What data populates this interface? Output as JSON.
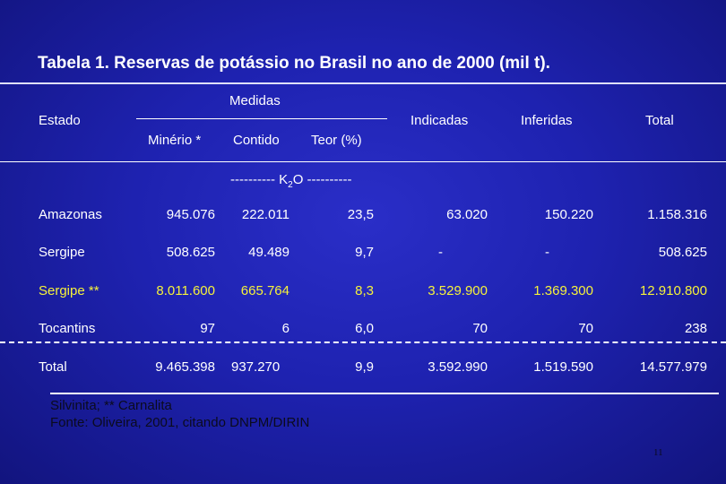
{
  "title": "Tabela 1. Reservas de potássio no Brasil no ano de 2000 (mil t).",
  "headers": {
    "estado": "Estado",
    "medidas": "Medidas",
    "minerio": "Minério *",
    "contido": "Contido",
    "teor": "Teor (%)",
    "indicadas": "Indicadas",
    "inferidas": "Inferidas",
    "total": "Total",
    "unit_prefix": "---------- K",
    "unit_sub": "2",
    "unit_suffix": "O ----------"
  },
  "rows": [
    {
      "estado": "Amazonas",
      "minerio": "945.076",
      "contido": "222.011",
      "teor": "23,5",
      "indicadas": "63.020",
      "inferidas": "150.220",
      "total": "1.158.316",
      "color": "#ffffff"
    },
    {
      "estado": "Sergipe",
      "minerio": "508.625",
      "contido": "49.489",
      "teor": "9,7",
      "indicadas": "-",
      "inferidas": "-",
      "total": "508.625",
      "color": "#ffffff"
    },
    {
      "estado": "Sergipe **",
      "minerio": "8.011.600",
      "contido": "665.764",
      "teor": "8,3",
      "indicadas": "3.529.900",
      "inferidas": "1.369.300",
      "total": "12.910.800",
      "color": "#f6f23a"
    },
    {
      "estado": "Tocantins",
      "minerio": "97",
      "contido": "6",
      "teor": "6,0",
      "indicadas": "70",
      "inferidas": "70",
      "total": "238",
      "color": "#ffffff"
    }
  ],
  "total_row": {
    "estado": "Total",
    "minerio": "9.465.398",
    "contido": "937.270",
    "teor": "9,9",
    "indicadas": "3.592.990",
    "inferidas": "1.519.590",
    "total": "14.577.979"
  },
  "footnote_1": "Silvinita; ** Carnalita",
  "footnote_2": "Fonte: Oliveira, 2001, citando DNPM/DIRIN",
  "page_number": "11",
  "colors": {
    "background": "#1e22b0",
    "text": "#ffffff",
    "highlight": "#f6f23a",
    "footnote": "#0b0b1e"
  }
}
